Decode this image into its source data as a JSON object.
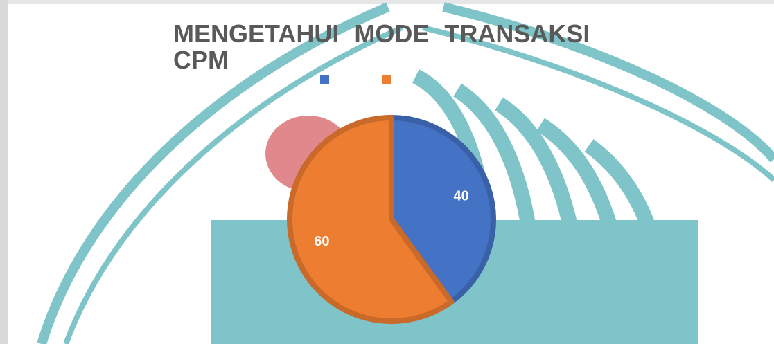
{
  "chart_data": {
    "type": "pie",
    "title": "MENGETAHUI MODE TRANSAKSI CPM",
    "values": [
      40,
      60
    ],
    "colors": [
      "#4472c4",
      "#ed7d31"
    ]
  }
}
